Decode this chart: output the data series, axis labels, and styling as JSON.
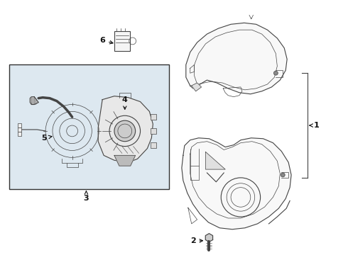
{
  "bg_color": "#ffffff",
  "line_color": "#444444",
  "box_bg": "#dde8f0",
  "label_color": "#111111",
  "fig_width": 4.9,
  "fig_height": 3.6,
  "dpi": 100
}
